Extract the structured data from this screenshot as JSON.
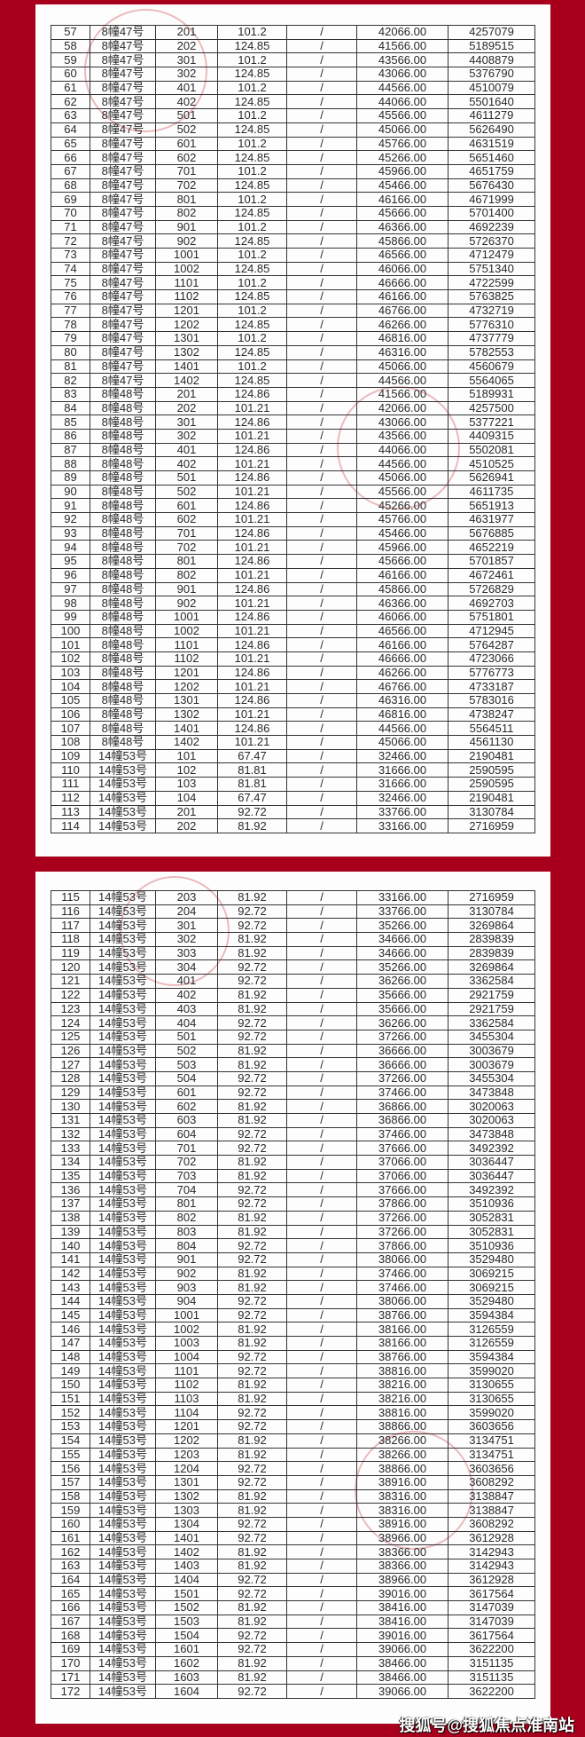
{
  "background_color": "#a8001c",
  "watermark": "搜狐号@搜狐焦点淮南站",
  "tables": [
    {
      "rows": [
        [
          "57",
          "8幢47号",
          "201",
          "101.2",
          "/",
          "42066.00",
          "4257079"
        ],
        [
          "58",
          "8幢47号",
          "202",
          "124.85",
          "/",
          "41566.00",
          "5189515"
        ],
        [
          "59",
          "8幢47号",
          "301",
          "101.2",
          "/",
          "43566.00",
          "4408879"
        ],
        [
          "60",
          "8幢47号",
          "302",
          "124.85",
          "/",
          "43066.00",
          "5376790"
        ],
        [
          "61",
          "8幢47号",
          "401",
          "101.2",
          "/",
          "44566.00",
          "4510079"
        ],
        [
          "62",
          "8幢47号",
          "402",
          "124.85",
          "/",
          "44066.00",
          "5501640"
        ],
        [
          "63",
          "8幢47号",
          "501",
          "101.2",
          "/",
          "45566.00",
          "4611279"
        ],
        [
          "64",
          "8幢47号",
          "502",
          "124.85",
          "/",
          "45066.00",
          "5626490"
        ],
        [
          "65",
          "8幢47号",
          "601",
          "101.2",
          "/",
          "45766.00",
          "4631519"
        ],
        [
          "66",
          "8幢47号",
          "602",
          "124.85",
          "/",
          "45266.00",
          "5651460"
        ],
        [
          "67",
          "8幢47号",
          "701",
          "101.2",
          "/",
          "45966.00",
          "4651759"
        ],
        [
          "68",
          "8幢47号",
          "702",
          "124.85",
          "/",
          "45466.00",
          "5676430"
        ],
        [
          "69",
          "8幢47号",
          "801",
          "101.2",
          "/",
          "46166.00",
          "4671999"
        ],
        [
          "70",
          "8幢47号",
          "802",
          "124.85",
          "/",
          "45666.00",
          "5701400"
        ],
        [
          "71",
          "8幢47号",
          "901",
          "101.2",
          "/",
          "46366.00",
          "4692239"
        ],
        [
          "72",
          "8幢47号",
          "902",
          "124.85",
          "/",
          "45866.00",
          "5726370"
        ],
        [
          "73",
          "8幢47号",
          "1001",
          "101.2",
          "/",
          "46566.00",
          "4712479"
        ],
        [
          "74",
          "8幢47号",
          "1002",
          "124.85",
          "/",
          "46066.00",
          "5751340"
        ],
        [
          "75",
          "8幢47号",
          "1101",
          "101.2",
          "/",
          "46666.00",
          "4722599"
        ],
        [
          "76",
          "8幢47号",
          "1102",
          "124.85",
          "/",
          "46166.00",
          "5763825"
        ],
        [
          "77",
          "8幢47号",
          "1201",
          "101.2",
          "/",
          "46766.00",
          "4732719"
        ],
        [
          "78",
          "8幢47号",
          "1202",
          "124.85",
          "/",
          "46266.00",
          "5776310"
        ],
        [
          "79",
          "8幢47号",
          "1301",
          "101.2",
          "/",
          "46816.00",
          "4737779"
        ],
        [
          "80",
          "8幢47号",
          "1302",
          "124.85",
          "/",
          "46316.00",
          "5782553"
        ],
        [
          "81",
          "8幢47号",
          "1401",
          "101.2",
          "/",
          "45066.00",
          "4560679"
        ],
        [
          "82",
          "8幢47号",
          "1402",
          "124.85",
          "/",
          "44566.00",
          "5564065"
        ],
        [
          "83",
          "8幢48号",
          "201",
          "124.86",
          "/",
          "41566.00",
          "5189931"
        ],
        [
          "84",
          "8幢48号",
          "202",
          "101.21",
          "/",
          "42066.00",
          "4257500"
        ],
        [
          "85",
          "8幢48号",
          "301",
          "124.86",
          "/",
          "43066.00",
          "5377221"
        ],
        [
          "86",
          "8幢48号",
          "302",
          "101.21",
          "/",
          "43566.00",
          "4409315"
        ],
        [
          "87",
          "8幢48号",
          "401",
          "124.86",
          "/",
          "44066.00",
          "5502081"
        ],
        [
          "88",
          "8幢48号",
          "402",
          "101.21",
          "/",
          "44566.00",
          "4510525"
        ],
        [
          "89",
          "8幢48号",
          "501",
          "124.86",
          "/",
          "45066.00",
          "5626941"
        ],
        [
          "90",
          "8幢48号",
          "502",
          "101.21",
          "/",
          "45566.00",
          "4611735"
        ],
        [
          "91",
          "8幢48号",
          "601",
          "124.86",
          "/",
          "45266.00",
          "5651913"
        ],
        [
          "92",
          "8幢48号",
          "602",
          "101.21",
          "/",
          "45766.00",
          "4631977"
        ],
        [
          "93",
          "8幢48号",
          "701",
          "124.86",
          "/",
          "45466.00",
          "5676885"
        ],
        [
          "94",
          "8幢48号",
          "702",
          "101.21",
          "/",
          "45966.00",
          "4652219"
        ],
        [
          "95",
          "8幢48号",
          "801",
          "124.86",
          "/",
          "45666.00",
          "5701857"
        ],
        [
          "96",
          "8幢48号",
          "802",
          "101.21",
          "/",
          "46166.00",
          "4672461"
        ],
        [
          "97",
          "8幢48号",
          "901",
          "124.86",
          "/",
          "45866.00",
          "5726829"
        ],
        [
          "98",
          "8幢48号",
          "902",
          "101.21",
          "/",
          "46366.00",
          "4692703"
        ],
        [
          "99",
          "8幢48号",
          "1001",
          "124.86",
          "/",
          "46066.00",
          "5751801"
        ],
        [
          "100",
          "8幢48号",
          "1002",
          "101.21",
          "/",
          "46566.00",
          "4712945"
        ],
        [
          "101",
          "8幢48号",
          "1101",
          "124.86",
          "/",
          "46166.00",
          "5764287"
        ],
        [
          "102",
          "8幢48号",
          "1102",
          "101.21",
          "/",
          "46666.00",
          "4723066"
        ],
        [
          "103",
          "8幢48号",
          "1201",
          "124.86",
          "/",
          "46266.00",
          "5776773"
        ],
        [
          "104",
          "8幢48号",
          "1202",
          "101.21",
          "/",
          "46766.00",
          "4733187"
        ],
        [
          "105",
          "8幢48号",
          "1301",
          "124.86",
          "/",
          "46316.00",
          "5783016"
        ],
        [
          "106",
          "8幢48号",
          "1302",
          "101.21",
          "/",
          "46816.00",
          "4738247"
        ],
        [
          "107",
          "8幢48号",
          "1401",
          "124.86",
          "/",
          "44566.00",
          "5564511"
        ],
        [
          "108",
          "8幢48号",
          "1402",
          "101.21",
          "/",
          "45066.00",
          "4561130"
        ],
        [
          "109",
          "14幢53号",
          "101",
          "67.47",
          "/",
          "32466.00",
          "2190481"
        ],
        [
          "110",
          "14幢53号",
          "102",
          "81.81",
          "/",
          "31666.00",
          "2590595"
        ],
        [
          "111",
          "14幢53号",
          "103",
          "81.81",
          "/",
          "31666.00",
          "2590595"
        ],
        [
          "112",
          "14幢53号",
          "104",
          "67.47",
          "/",
          "32466.00",
          "2190481"
        ],
        [
          "113",
          "14幢53号",
          "201",
          "92.72",
          "/",
          "33766.00",
          "3130784"
        ],
        [
          "114",
          "14幢53号",
          "202",
          "81.92",
          "/",
          "33166.00",
          "2716959"
        ]
      ]
    },
    {
      "rows": [
        [
          "115",
          "14幢53号",
          "203",
          "81.92",
          "/",
          "33166.00",
          "2716959"
        ],
        [
          "116",
          "14幢53号",
          "204",
          "92.72",
          "/",
          "33766.00",
          "3130784"
        ],
        [
          "117",
          "14幢53号",
          "301",
          "92.72",
          "/",
          "35266.00",
          "3269864"
        ],
        [
          "118",
          "14幢53号",
          "302",
          "81.92",
          "/",
          "34666.00",
          "2839839"
        ],
        [
          "119",
          "14幢53号",
          "303",
          "81.92",
          "/",
          "34666.00",
          "2839839"
        ],
        [
          "120",
          "14幢53号",
          "304",
          "92.72",
          "/",
          "35266.00",
          "3269864"
        ],
        [
          "121",
          "14幢53号",
          "401",
          "92.72",
          "/",
          "36266.00",
          "3362584"
        ],
        [
          "122",
          "14幢53号",
          "402",
          "81.92",
          "/",
          "35666.00",
          "2921759"
        ],
        [
          "123",
          "14幢53号",
          "403",
          "81.92",
          "/",
          "35666.00",
          "2921759"
        ],
        [
          "124",
          "14幢53号",
          "404",
          "92.72",
          "/",
          "36266.00",
          "3362584"
        ],
        [
          "125",
          "14幢53号",
          "501",
          "92.72",
          "/",
          "37266.00",
          "3455304"
        ],
        [
          "126",
          "14幢53号",
          "502",
          "81.92",
          "/",
          "36666.00",
          "3003679"
        ],
        [
          "127",
          "14幢53号",
          "503",
          "81.92",
          "/",
          "36666.00",
          "3003679"
        ],
        [
          "128",
          "14幢53号",
          "504",
          "92.72",
          "/",
          "37266.00",
          "3455304"
        ],
        [
          "129",
          "14幢53号",
          "601",
          "92.72",
          "/",
          "37466.00",
          "3473848"
        ],
        [
          "130",
          "14幢53号",
          "602",
          "81.92",
          "/",
          "36866.00",
          "3020063"
        ],
        [
          "131",
          "14幢53号",
          "603",
          "81.92",
          "/",
          "36866.00",
          "3020063"
        ],
        [
          "132",
          "14幢53号",
          "604",
          "92.72",
          "/",
          "37466.00",
          "3473848"
        ],
        [
          "133",
          "14幢53号",
          "701",
          "92.72",
          "/",
          "37666.00",
          "3492392"
        ],
        [
          "134",
          "14幢53号",
          "702",
          "81.92",
          "/",
          "37066.00",
          "3036447"
        ],
        [
          "135",
          "14幢53号",
          "703",
          "81.92",
          "/",
          "37066.00",
          "3036447"
        ],
        [
          "136",
          "14幢53号",
          "704",
          "92.72",
          "/",
          "37666.00",
          "3492392"
        ],
        [
          "137",
          "14幢53号",
          "801",
          "92.72",
          "/",
          "37866.00",
          "3510936"
        ],
        [
          "138",
          "14幢53号",
          "802",
          "81.92",
          "/",
          "37266.00",
          "3052831"
        ],
        [
          "139",
          "14幢53号",
          "803",
          "81.92",
          "/",
          "37266.00",
          "3052831"
        ],
        [
          "140",
          "14幢53号",
          "804",
          "92.72",
          "/",
          "37866.00",
          "3510936"
        ],
        [
          "141",
          "14幢53号",
          "901",
          "92.72",
          "/",
          "38066.00",
          "3529480"
        ],
        [
          "142",
          "14幢53号",
          "902",
          "81.92",
          "/",
          "37466.00",
          "3069215"
        ],
        [
          "143",
          "14幢53号",
          "903",
          "81.92",
          "/",
          "37466.00",
          "3069215"
        ],
        [
          "144",
          "14幢53号",
          "904",
          "92.72",
          "/",
          "38066.00",
          "3529480"
        ],
        [
          "145",
          "14幢53号",
          "1001",
          "92.72",
          "/",
          "38766.00",
          "3594384"
        ],
        [
          "146",
          "14幢53号",
          "1002",
          "81.92",
          "/",
          "38166.00",
          "3126559"
        ],
        [
          "147",
          "14幢53号",
          "1003",
          "81.92",
          "/",
          "38166.00",
          "3126559"
        ],
        [
          "148",
          "14幢53号",
          "1004",
          "92.72",
          "/",
          "38766.00",
          "3594384"
        ],
        [
          "149",
          "14幢53号",
          "1101",
          "92.72",
          "/",
          "38816.00",
          "3599020"
        ],
        [
          "150",
          "14幢53号",
          "1102",
          "81.92",
          "/",
          "38216.00",
          "3130655"
        ],
        [
          "151",
          "14幢53号",
          "1103",
          "81.92",
          "/",
          "38216.00",
          "3130655"
        ],
        [
          "152",
          "14幢53号",
          "1104",
          "92.72",
          "/",
          "38816.00",
          "3599020"
        ],
        [
          "153",
          "14幢53号",
          "1201",
          "92.72",
          "/",
          "38866.00",
          "3603656"
        ],
        [
          "154",
          "14幢53号",
          "1202",
          "81.92",
          "/",
          "38266.00",
          "3134751"
        ],
        [
          "155",
          "14幢53号",
          "1203",
          "81.92",
          "/",
          "38266.00",
          "3134751"
        ],
        [
          "156",
          "14幢53号",
          "1204",
          "92.72",
          "/",
          "38866.00",
          "3603656"
        ],
        [
          "157",
          "14幢53号",
          "1301",
          "92.72",
          "/",
          "38916.00",
          "3608292"
        ],
        [
          "158",
          "14幢53号",
          "1302",
          "81.92",
          "/",
          "38316.00",
          "3138847"
        ],
        [
          "159",
          "14幢53号",
          "1303",
          "81.92",
          "/",
          "38316.00",
          "3138847"
        ],
        [
          "160",
          "14幢53号",
          "1304",
          "92.72",
          "/",
          "38916.00",
          "3608292"
        ],
        [
          "161",
          "14幢53号",
          "1401",
          "92.72",
          "/",
          "38966.00",
          "3612928"
        ],
        [
          "162",
          "14幢53号",
          "1402",
          "81.92",
          "/",
          "38366.00",
          "3142943"
        ],
        [
          "163",
          "14幢53号",
          "1403",
          "81.92",
          "/",
          "38366.00",
          "3142943"
        ],
        [
          "164",
          "14幢53号",
          "1404",
          "92.72",
          "/",
          "38966.00",
          "3612928"
        ],
        [
          "165",
          "14幢53号",
          "1501",
          "92.72",
          "/",
          "39016.00",
          "3617564"
        ],
        [
          "166",
          "14幢53号",
          "1502",
          "81.92",
          "/",
          "38416.00",
          "3147039"
        ],
        [
          "167",
          "14幢53号",
          "1503",
          "81.92",
          "/",
          "38416.00",
          "3147039"
        ],
        [
          "168",
          "14幢53号",
          "1504",
          "92.72",
          "/",
          "39016.00",
          "3617564"
        ],
        [
          "169",
          "14幢53号",
          "1601",
          "92.72",
          "/",
          "39066.00",
          "3622200"
        ],
        [
          "170",
          "14幢53号",
          "1602",
          "81.92",
          "/",
          "38466.00",
          "3151135"
        ],
        [
          "171",
          "14幢53号",
          "1603",
          "81.92",
          "/",
          "38466.00",
          "3151135"
        ],
        [
          "172",
          "14幢53号",
          "1604",
          "92.72",
          "/",
          "39066.00",
          "3622200"
        ]
      ]
    }
  ]
}
